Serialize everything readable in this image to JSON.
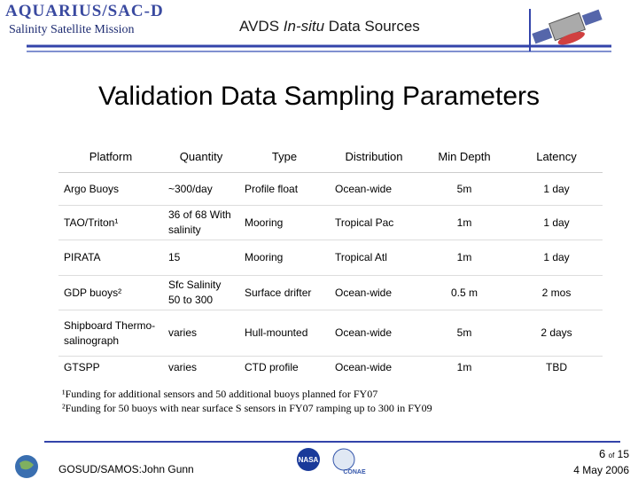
{
  "header": {
    "logo": "AQUARIUS/SAC-D",
    "mission": "Salinity Satellite Mission",
    "title_parts": [
      "AVDS ",
      "In-situ",
      " Data Sources"
    ]
  },
  "title": "Validation Data Sampling Parameters",
  "table": {
    "columns": [
      "Platform",
      "Quantity",
      "Type",
      "Distribution",
      "Min Depth",
      "Latency"
    ],
    "rows": [
      [
        "Argo Buoys",
        "~300/day",
        "Profile float",
        "Ocean-wide",
        "5m",
        "1 day"
      ],
      [
        "TAO/Triton¹",
        "36 of 68 With salinity",
        "Mooring",
        "Tropical Pac",
        "1m",
        "1 day"
      ],
      [
        "PIRATA",
        "15",
        "Mooring",
        "Tropical Atl",
        "1m",
        "1 day"
      ],
      [
        "GDP buoys²",
        "Sfc Salinity 50 to 300",
        "Surface drifter",
        "Ocean-wide",
        "0.5 m",
        "2 mos"
      ],
      [
        "Shipboard Thermo-salinograph",
        "varies",
        "Hull-mounted",
        "Ocean-wide",
        "5m",
        "2 days"
      ],
      [
        "GTSPP",
        "varies",
        "CTD profile",
        "Ocean-wide",
        "1m",
        "TBD"
      ]
    ]
  },
  "footnotes": [
    "¹Funding for additional sensors and 50 additional buoys planned for FY07",
    "²Funding for 50 buoys with near surface S sensors in FY07 ramping up to 300 in FY09"
  ],
  "footer": {
    "author": "GOSUD/SAMOS:John Gunn",
    "page": "6",
    "of": "of",
    "total": "15",
    "date": "4 May 2006",
    "logos": [
      "NASA",
      "CONAE"
    ]
  }
}
